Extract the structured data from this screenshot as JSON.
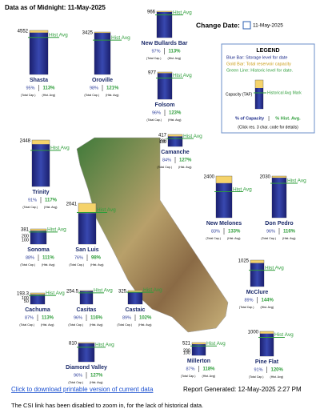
{
  "header": {
    "title": "Data as of Midnight: 11-May-2025",
    "change_date_label": "Change Date:",
    "date": "11-May-2025"
  },
  "labels": {
    "hist_avg": "Hist Avg",
    "total_cap": "(Total Cap.)",
    "hist_avg_small": "(Hist. Avg)"
  },
  "legend": {
    "title": "LEGEND",
    "blue": "Blue Bar: Storage level for date",
    "gold": "Gold Bar: Total reservoir capacity",
    "green": "Green Line: Historic level for date.",
    "capacity": "Capacity (TAF)",
    "hist_mark": "Historical Avg Mark",
    "pct_capacity": "% of Capacity",
    "pct_hist": "% Hist. Avg.",
    "click": "(Click res. 3 char. code for details)"
  },
  "reservoirs": [
    {
      "name": "Shasta",
      "capacity": 4552,
      "pct_capacity": {
        "value": 95,
        "label": "95%"
      },
      "pct_hist_avg": {
        "value": 113,
        "label": "113%"
      }
    },
    {
      "name": "Oroville",
      "capacity": 3425,
      "pct_capacity": {
        "value": 98,
        "label": "98%"
      },
      "pct_hist_avg": {
        "value": 121,
        "label": "121%"
      }
    },
    {
      "name": "New Bullards Bar",
      "capacity": 966,
      "pct_capacity": {
        "value": 97,
        "label": "97%"
      },
      "pct_hist_avg": {
        "value": 113,
        "label": "113%"
      }
    },
    {
      "name": "Folsom",
      "capacity": 977,
      "pct_capacity": {
        "value": 96,
        "label": "96%"
      },
      "pct_hist_avg": {
        "value": 123,
        "label": "123%"
      }
    },
    {
      "name": "Trinity",
      "capacity": 2448,
      "pct_capacity": {
        "value": 91,
        "label": "91%"
      },
      "pct_hist_avg": {
        "value": 117,
        "label": "117%"
      }
    },
    {
      "name": "Camanche",
      "capacity": 417,
      "scale": [
        200,
        150
      ],
      "pct_capacity": {
        "value": 84,
        "label": "84%"
      },
      "pct_hist_avg": {
        "value": 127,
        "label": "127%"
      }
    },
    {
      "name": "New Melones",
      "capacity": 2400,
      "pct_capacity": {
        "value": 83,
        "label": "83%"
      },
      "pct_hist_avg": {
        "value": 133,
        "label": "133%"
      }
    },
    {
      "name": "Don Pedro",
      "capacity": 2030,
      "pct_capacity": {
        "value": 96,
        "label": "96%"
      },
      "pct_hist_avg": {
        "value": 116,
        "label": "116%"
      }
    },
    {
      "name": "Sonoma",
      "capacity": 381,
      "scale": [
        200,
        100
      ],
      "pct_capacity": {
        "value": 88,
        "label": "88%"
      },
      "pct_hist_avg": {
        "value": 111,
        "label": "111%"
      }
    },
    {
      "name": "San Luis",
      "capacity": 2041,
      "pct_capacity": {
        "value": 76,
        "label": "76%"
      },
      "pct_hist_avg": {
        "value": 98,
        "label": "98%"
      }
    },
    {
      "name": "McClure",
      "capacity": 1025,
      "pct_capacity": {
        "value": 89,
        "label": "89%"
      },
      "pct_hist_avg": {
        "value": 144,
        "label": "144%"
      }
    },
    {
      "name": "Cachuma",
      "capacity": 193.3,
      "scale": [
        100,
        50
      ],
      "pct_capacity": {
        "value": 87,
        "label": "87%"
      },
      "pct_hist_avg": {
        "value": 113,
        "label": "113%"
      }
    },
    {
      "name": "Casitas",
      "capacity": 254.5,
      "pct_capacity": {
        "value": 96,
        "label": "96%"
      },
      "pct_hist_avg": {
        "value": 116,
        "label": "116%"
      }
    },
    {
      "name": "Castaic",
      "capacity": 325,
      "pct_capacity": {
        "value": 89,
        "label": "89%"
      },
      "pct_hist_avg": {
        "value": 102,
        "label": "102%"
      }
    },
    {
      "name": "Diamond Valley",
      "capacity": 810,
      "pct_capacity": {
        "value": 96,
        "label": "96%"
      },
      "pct_hist_avg": {
        "value": 127,
        "label": "127%"
      }
    },
    {
      "name": "Millerton",
      "capacity": 521,
      "scale": [
        200,
        100
      ],
      "pct_capacity": {
        "value": 87,
        "label": "87%"
      },
      "pct_hist_avg": {
        "value": 118,
        "label": "118%"
      }
    },
    {
      "name": "Pine Flat",
      "capacity": 1000,
      "pct_capacity": {
        "value": 91,
        "label": "91%"
      },
      "pct_hist_avg": {
        "value": 120,
        "label": "120%"
      }
    }
  ],
  "footer": {
    "download_link": "Click to download printable version of current data",
    "report": "Report Generated: 12-May-2025 2:27 PM",
    "note": "The CSI link has been disabled to zoom in, for the lack of historical data."
  }
}
